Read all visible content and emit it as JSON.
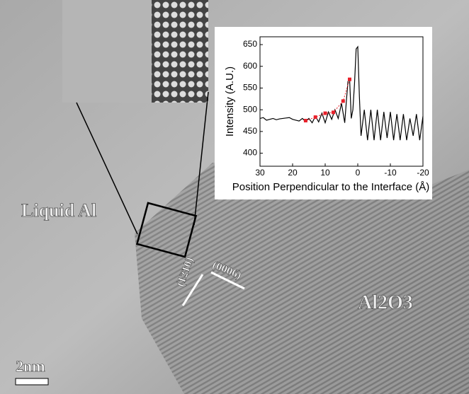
{
  "annotations": {
    "liquid": "Liquid Al",
    "oxide": "Al2O3",
    "plane1": "(12̄10)",
    "plane2": "(0006)",
    "scale": "2nm"
  },
  "chart_data": {
    "type": "line",
    "xlabel": "Position Perpendicular to the Interface (Å)",
    "ylabel": "Intensity (A.U.)",
    "xlim": [
      30,
      -20
    ],
    "ylim": [
      370,
      668
    ],
    "xticks": [
      30,
      20,
      10,
      0,
      -10,
      -20
    ],
    "yticks": [
      400,
      450,
      500,
      550,
      600,
      650
    ],
    "series": [
      {
        "color": "#000000",
        "x": [
          30,
          29,
          28,
          27,
          26,
          25,
          24,
          23,
          22,
          21,
          20,
          19,
          18,
          17,
          16,
          15,
          14,
          13,
          12,
          11,
          10,
          9,
          8,
          7,
          6,
          5,
          4,
          3.5,
          3,
          2.5,
          2,
          1.5,
          1,
          0.5,
          0,
          -0.5,
          -1,
          -2,
          -3,
          -4,
          -5,
          -6,
          -7,
          -8,
          -9,
          -10,
          -11,
          -12,
          -13,
          -14,
          -15,
          -16,
          -17,
          -18,
          -19,
          -20
        ],
        "values": [
          480,
          482,
          476,
          478,
          480,
          477,
          479,
          480,
          481,
          482,
          478,
          476,
          474,
          480,
          473,
          480,
          470,
          485,
          472,
          492,
          470,
          495,
          478,
          500,
          480,
          515,
          470,
          520,
          565,
          570,
          480,
          500,
          560,
          640,
          645,
          530,
          440,
          500,
          430,
          500,
          430,
          500,
          430,
          495,
          435,
          495,
          430,
          490,
          430,
          490,
          430,
          480,
          440,
          490,
          430,
          485
        ]
      },
      {
        "color": "#e8202a",
        "x": [
          16,
          13,
          10,
          7.5,
          4.5,
          2.5
        ],
        "values": [
          475,
          483,
          492,
          494,
          520,
          570
        ]
      }
    ]
  }
}
